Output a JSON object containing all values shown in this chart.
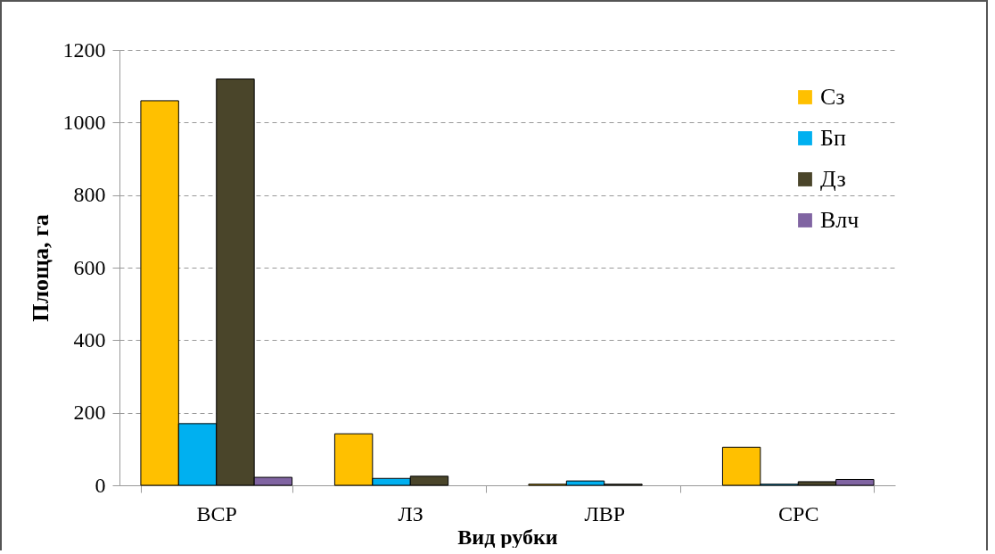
{
  "chart_data": {
    "type": "bar",
    "xlabel": "Вид рубки",
    "ylabel": "Площа, га",
    "categories": [
      "ВСР",
      "ЛЗ",
      "ЛВР",
      "СРС"
    ],
    "series": [
      {
        "name": "Сз",
        "color": "#ffc000",
        "values": [
          1060,
          142,
          3,
          105
        ]
      },
      {
        "name": "Бп",
        "color": "#00b0f0",
        "values": [
          170,
          19,
          12,
          3
        ]
      },
      {
        "name": "Дз",
        "color": "#4a452a",
        "values": [
          1120,
          25,
          3,
          10
        ]
      },
      {
        "name": "Влч",
        "color": "#8064a2",
        "values": [
          22,
          null,
          null,
          16
        ]
      }
    ],
    "ylim": [
      0,
      1200
    ],
    "yticks": [
      0,
      200,
      400,
      600,
      800,
      1000,
      1200
    ],
    "grid": "y",
    "legend": "top right"
  }
}
